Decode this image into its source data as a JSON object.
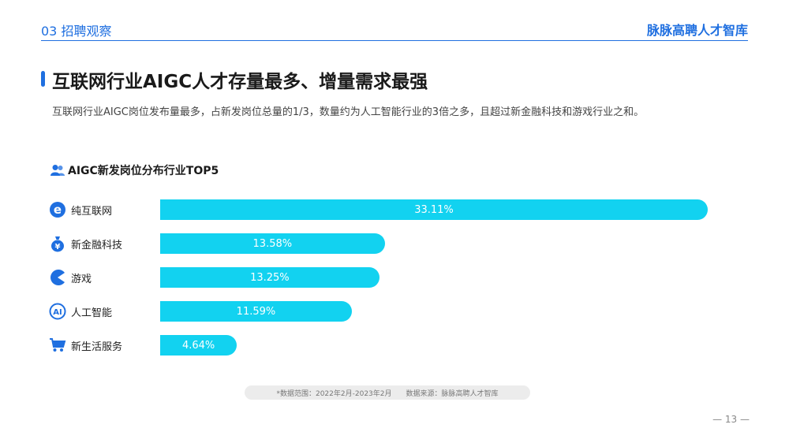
{
  "header": {
    "section": "03 招聘观察",
    "brand": "脉脉高聘人才智库"
  },
  "title": "互联网行业AIGC人才存量最多、增量需求最强",
  "subtitle": "互联网行业AIGC岗位发布量最多，占新发岗位总量的1/3，数量约为人工智能行业的3倍之多，且超过新金融科技和游戏行业之和。",
  "chart_heading": "AIGC新发岗位分布行业TOP5",
  "chart_data": {
    "type": "bar",
    "orientation": "horizontal",
    "title": "AIGC新发岗位分布行业TOP5",
    "categories": [
      "纯互联网",
      "新金融科技",
      "游戏",
      "人工智能",
      "新生活服务"
    ],
    "values": [
      33.11,
      13.58,
      13.25,
      11.59,
      4.64
    ],
    "value_labels": [
      "33.11%",
      "13.58%",
      "13.25%",
      "11.59%",
      "4.64%"
    ],
    "icons": [
      "browser-icon",
      "money-bag-icon",
      "pacman-icon",
      "ai-icon",
      "shopping-cart-icon"
    ],
    "bar_color": "#12d2f0",
    "grid": false,
    "legend": "none"
  },
  "footnote": {
    "range": "*数据范围：2022年2月-2023年2月",
    "source": "数据来源：脉脉高聘人才智库"
  },
  "page_number": "— 13 —",
  "colors": {
    "accent": "#1f6fe0",
    "bar": "#12d2f0"
  }
}
